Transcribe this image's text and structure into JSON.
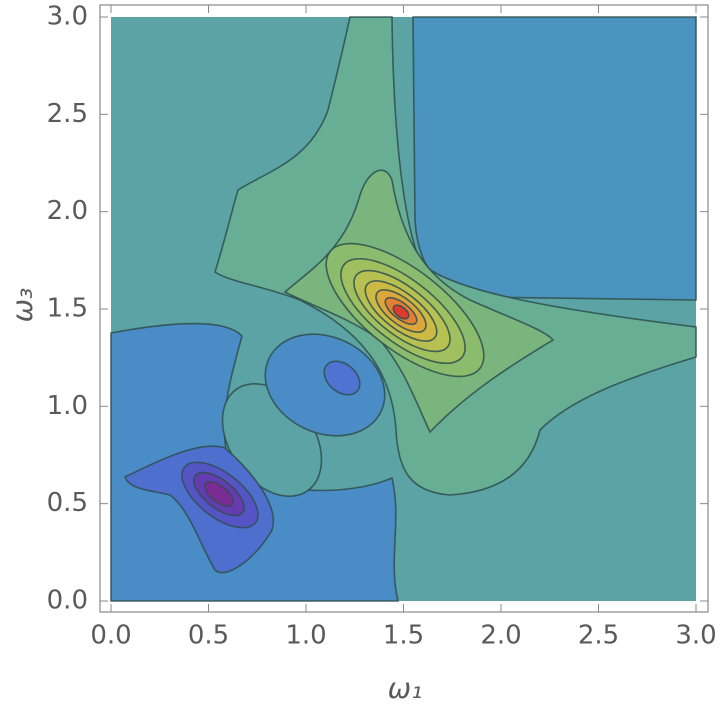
{
  "chart_data": {
    "type": "contour",
    "xlabel": "ω₁",
    "ylabel": "ω₃",
    "xlim": [
      0,
      3
    ],
    "ylim": [
      0,
      3
    ],
    "xticks": [
      {
        "value": 0,
        "label": "0.0"
      },
      0.5,
      {
        "value": 1,
        "label": "1.0"
      },
      1.5,
      {
        "value": 2,
        "label": "2.0"
      },
      2.5,
      {
        "value": 3,
        "label": "3.0"
      }
    ],
    "yticks": [
      {
        "value": 0,
        "label": "0.0"
      },
      0.5,
      {
        "value": 1,
        "label": "1.0"
      },
      1.5,
      {
        "value": 2,
        "label": "2.0"
      },
      2.5,
      {
        "value": 3,
        "label": "3.0"
      }
    ]
  }
}
